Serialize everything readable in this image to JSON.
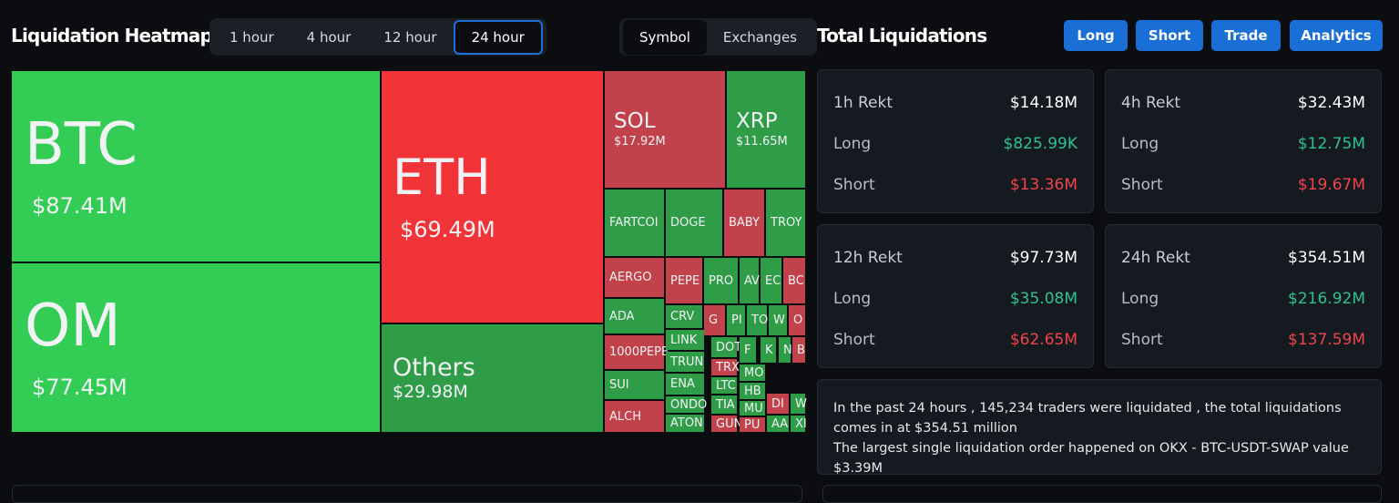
{
  "header": {
    "title": "Liquidation Heatmap",
    "time_tabs": [
      "1 hour",
      "4 hour",
      "12 hour",
      "24 hour"
    ],
    "view_tabs": [
      "Symbol",
      "Exchanges"
    ]
  },
  "treemap": [
    {
      "label": "BTC",
      "value": "$87.41M"
    },
    {
      "label": "OM",
      "value": "$77.45M"
    },
    {
      "label": "ETH",
      "value": "$69.49M"
    },
    {
      "label": "Others",
      "value": "$29.98M"
    },
    {
      "label": "SOL",
      "value": "$17.92M"
    },
    {
      "label": "XRP",
      "value": "$11.65M"
    },
    {
      "label": "FARTCOI"
    },
    {
      "label": "DOGE"
    },
    {
      "label": "BABY"
    },
    {
      "label": "TROY"
    },
    {
      "label": "AERGO"
    },
    {
      "label": "ADA"
    },
    {
      "label": "1000PEPE"
    },
    {
      "label": "SUI"
    },
    {
      "label": "ALCH"
    },
    {
      "label": "PEPE"
    },
    {
      "label": "PRO"
    },
    {
      "label": "AV"
    },
    {
      "label": "EC"
    },
    {
      "label": "BC"
    },
    {
      "label": "CRV"
    },
    {
      "label": "G"
    },
    {
      "label": "PI"
    },
    {
      "label": "TO"
    },
    {
      "label": "W"
    },
    {
      "label": "O"
    },
    {
      "label": "LINK"
    },
    {
      "label": "DOT"
    },
    {
      "label": "TRUN"
    },
    {
      "label": "TRX"
    },
    {
      "label": "ENA"
    },
    {
      "label": "LTC"
    },
    {
      "label": "ONDO"
    },
    {
      "label": "TIA"
    },
    {
      "label": "ATON"
    },
    {
      "label": "GUN"
    },
    {
      "label": "F"
    },
    {
      "label": "K"
    },
    {
      "label": "N"
    },
    {
      "label": "B"
    },
    {
      "label": "MO"
    },
    {
      "label": "HB"
    },
    {
      "label": "MU"
    },
    {
      "label": "PU"
    },
    {
      "label": "DI"
    },
    {
      "label": "AA"
    },
    {
      "label": "W"
    },
    {
      "label": "XI"
    }
  ],
  "totals": {
    "title": "Total Liquidations",
    "buttons": [
      "Long",
      "Short",
      "Trade",
      "Analytics"
    ],
    "cards": [
      {
        "title": "1h Rekt",
        "total": "$14.18M",
        "rows": [
          [
            "Long",
            "$825.99K"
          ],
          [
            "Short",
            "$13.36M"
          ]
        ]
      },
      {
        "title": "4h Rekt",
        "total": "$32.43M",
        "rows": [
          [
            "Long",
            "$12.75M"
          ],
          [
            "Short",
            "$19.67M"
          ]
        ]
      },
      {
        "title": "12h Rekt",
        "total": "$97.73M",
        "rows": [
          [
            "Long",
            "$35.08M"
          ],
          [
            "Short",
            "$62.65M"
          ]
        ]
      },
      {
        "title": "24h Rekt",
        "total": "$354.51M",
        "rows": [
          [
            "Long",
            "$216.92M"
          ],
          [
            "Short",
            "$137.59M"
          ]
        ]
      }
    ],
    "summary": [
      "In the past 24 hours , 145,234 traders were liquidated , the total liquidations comes in at $354.51 million",
      "The largest single liquidation order happened on OKX - BTC-USDT-SWAP value $3.39M"
    ]
  }
}
